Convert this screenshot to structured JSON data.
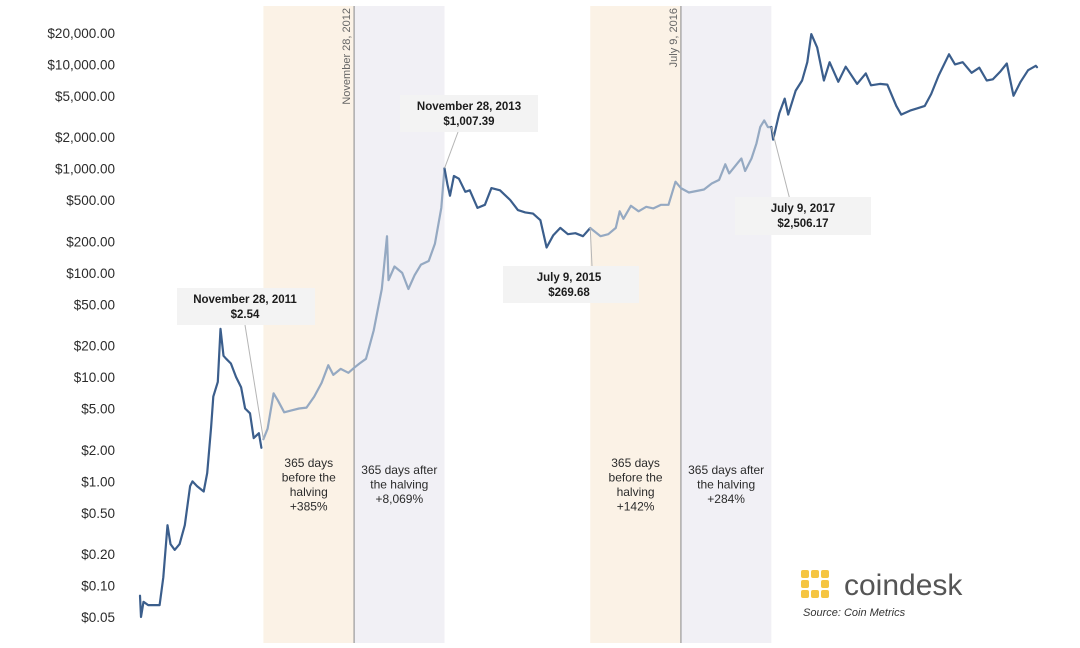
{
  "chart_data": {
    "type": "line",
    "title": "",
    "xlabel": "",
    "ylabel": "",
    "y_scale": "log",
    "ylim": [
      0.04,
      28000
    ],
    "y_ticks": [
      {
        "value": 20000,
        "label": "$20,000.00"
      },
      {
        "value": 10000,
        "label": "$10,000.00"
      },
      {
        "value": 5000,
        "label": "$5,000.00"
      },
      {
        "value": 2000,
        "label": "$2,000.00"
      },
      {
        "value": 1000,
        "label": "$1,000.00"
      },
      {
        "value": 500,
        "label": "$500.00"
      },
      {
        "value": 200,
        "label": "$200.00"
      },
      {
        "value": 100,
        "label": "$100.00"
      },
      {
        "value": 50,
        "label": "$50.00"
      },
      {
        "value": 20,
        "label": "$20.00"
      },
      {
        "value": 10,
        "label": "$10.00"
      },
      {
        "value": 5,
        "label": "$5.00"
      },
      {
        "value": 2,
        "label": "$2.00"
      },
      {
        "value": 1,
        "label": "$1.00"
      },
      {
        "value": 0.5,
        "label": "$0.50"
      },
      {
        "value": 0.2,
        "label": "$0.20"
      },
      {
        "value": 0.1,
        "label": "$0.10"
      },
      {
        "value": 0.05,
        "label": "$0.05"
      }
    ],
    "x_domain": [
      "2010-07-18",
      "2020-06-15"
    ],
    "grid": false,
    "colors": {
      "price_line": "#3b5e8c",
      "highlight_line": "#95a9c2",
      "before_band": "#fbf2e6",
      "after_band": "#f1f0f5",
      "vline": "#9a9a9a",
      "annotation_bg": "#f3f3f3",
      "halving_marker": "#8f8f8f"
    },
    "series": [
      {
        "points": [
          [
            "2010-07-18",
            0.08
          ],
          [
            "2010-07-22",
            0.05
          ],
          [
            "2010-08-01",
            0.07
          ],
          [
            "2010-08-20",
            0.065
          ],
          [
            "2010-09-15",
            0.065
          ],
          [
            "2010-10-05",
            0.065
          ],
          [
            "2010-10-20",
            0.12
          ],
          [
            "2010-11-06",
            0.38
          ],
          [
            "2010-11-18",
            0.25
          ],
          [
            "2010-12-05",
            0.22
          ],
          [
            "2010-12-25",
            0.25
          ],
          [
            "2011-01-15",
            0.38
          ],
          [
            "2011-02-05",
            0.9
          ],
          [
            "2011-02-15",
            1.0
          ],
          [
            "2011-03-05",
            0.9
          ],
          [
            "2011-04-01",
            0.8
          ],
          [
            "2011-04-15",
            1.2
          ],
          [
            "2011-05-01",
            3.3
          ],
          [
            "2011-05-10",
            6.5
          ],
          [
            "2011-05-28",
            9.0
          ],
          [
            "2011-06-08",
            29.0
          ],
          [
            "2011-06-20",
            16.0
          ],
          [
            "2011-07-01",
            15.0
          ],
          [
            "2011-07-20",
            13.5
          ],
          [
            "2011-08-10",
            10.0
          ],
          [
            "2011-08-30",
            8.0
          ],
          [
            "2011-09-15",
            5.0
          ],
          [
            "2011-10-05",
            4.5
          ],
          [
            "2011-10-20",
            2.6
          ],
          [
            "2011-11-10",
            2.9
          ],
          [
            "2011-11-20",
            2.1
          ]
        ]
      },
      {
        "points": [
          [
            "2011-11-28",
            2.54
          ],
          [
            "2011-12-15",
            3.2
          ],
          [
            "2012-01-08",
            7.0
          ],
          [
            "2012-01-25",
            6.0
          ],
          [
            "2012-02-20",
            4.6
          ],
          [
            "2012-03-20",
            4.8
          ],
          [
            "2012-04-20",
            5.0
          ],
          [
            "2012-05-20",
            5.1
          ],
          [
            "2012-06-20",
            6.5
          ],
          [
            "2012-07-20",
            8.8
          ],
          [
            "2012-08-16",
            13.0
          ],
          [
            "2012-09-05",
            10.5
          ],
          [
            "2012-10-05",
            12.0
          ],
          [
            "2012-11-05",
            11.0
          ],
          [
            "2012-11-28",
            12.3
          ],
          [
            "2012-12-20",
            13.5
          ],
          [
            "2013-01-15",
            15.0
          ],
          [
            "2013-02-15",
            28.0
          ],
          [
            "2013-03-20",
            70.0
          ],
          [
            "2013-04-10",
            225.0
          ],
          [
            "2013-04-16",
            85.0
          ],
          [
            "2013-05-10",
            115.0
          ],
          [
            "2013-06-10",
            100.0
          ],
          [
            "2013-07-05",
            70.0
          ],
          [
            "2013-07-30",
            95.0
          ],
          [
            "2013-08-25",
            120.0
          ],
          [
            "2013-09-25",
            130.0
          ],
          [
            "2013-10-20",
            190.0
          ],
          [
            "2013-11-15",
            420.0
          ],
          [
            "2013-11-28",
            1007.39
          ]
        ]
      },
      {
        "points": [
          [
            "2013-11-28",
            1007.39
          ],
          [
            "2013-12-10",
            700.0
          ],
          [
            "2013-12-20",
            550.0
          ],
          [
            "2014-01-05",
            850.0
          ],
          [
            "2014-01-25",
            800.0
          ],
          [
            "2014-02-20",
            600.0
          ],
          [
            "2014-03-10",
            620.0
          ],
          [
            "2014-04-10",
            420.0
          ],
          [
            "2014-05-10",
            450.0
          ],
          [
            "2014-06-05",
            650.0
          ],
          [
            "2014-07-10",
            620.0
          ],
          [
            "2014-08-20",
            500.0
          ],
          [
            "2014-09-20",
            400.0
          ],
          [
            "2014-10-20",
            380.0
          ],
          [
            "2014-11-20",
            370.0
          ],
          [
            "2014-12-20",
            320.0
          ],
          [
            "2015-01-14",
            175.0
          ],
          [
            "2015-02-10",
            230.0
          ],
          [
            "2015-03-10",
            270.0
          ],
          [
            "2015-04-10",
            235.0
          ],
          [
            "2015-05-10",
            240.0
          ],
          [
            "2015-06-10",
            225.0
          ],
          [
            "2015-07-09",
            269.68
          ]
        ]
      },
      {
        "points": [
          [
            "2015-07-09",
            269.68
          ],
          [
            "2015-08-20",
            225.0
          ],
          [
            "2015-09-20",
            235.0
          ],
          [
            "2015-10-20",
            270.0
          ],
          [
            "2015-11-05",
            390.0
          ],
          [
            "2015-11-20",
            330.0
          ],
          [
            "2015-12-20",
            440.0
          ],
          [
            "2016-01-20",
            390.0
          ],
          [
            "2016-02-20",
            430.0
          ],
          [
            "2016-03-20",
            415.0
          ],
          [
            "2016-04-20",
            450.0
          ],
          [
            "2016-05-20",
            450.0
          ],
          [
            "2016-06-17",
            750.0
          ],
          [
            "2016-07-09",
            650.0
          ],
          [
            "2016-08-10",
            590.0
          ],
          [
            "2016-09-10",
            610.0
          ],
          [
            "2016-10-10",
            630.0
          ],
          [
            "2016-11-10",
            720.0
          ],
          [
            "2016-12-10",
            780.0
          ],
          [
            "2017-01-04",
            1100.0
          ],
          [
            "2017-01-20",
            900.0
          ],
          [
            "2017-02-25",
            1150.0
          ],
          [
            "2017-03-10",
            1250.0
          ],
          [
            "2017-03-25",
            950.0
          ],
          [
            "2017-04-20",
            1250.0
          ],
          [
            "2017-05-10",
            1750.0
          ],
          [
            "2017-05-25",
            2500.0
          ],
          [
            "2017-06-10",
            2900.0
          ],
          [
            "2017-06-25",
            2500.0
          ],
          [
            "2017-07-09",
            2506.17
          ]
        ]
      },
      {
        "points": [
          [
            "2017-07-09",
            2506.17
          ],
          [
            "2017-07-16",
            1900.0
          ],
          [
            "2017-08-10",
            3400.0
          ],
          [
            "2017-09-01",
            4700.0
          ],
          [
            "2017-09-15",
            3300.0
          ],
          [
            "2017-10-15",
            5600.0
          ],
          [
            "2017-11-10",
            7000.0
          ],
          [
            "2017-12-01",
            10500.0
          ],
          [
            "2017-12-17",
            19500.0
          ],
          [
            "2018-01-10",
            14500.0
          ],
          [
            "2018-02-06",
            7000.0
          ],
          [
            "2018-03-01",
            10500.0
          ],
          [
            "2018-04-05",
            6800.0
          ],
          [
            "2018-05-05",
            9500.0
          ],
          [
            "2018-06-20",
            6500.0
          ],
          [
            "2018-07-25",
            8200.0
          ],
          [
            "2018-08-15",
            6300.0
          ],
          [
            "2018-09-20",
            6500.0
          ],
          [
            "2018-10-20",
            6400.0
          ],
          [
            "2018-11-25",
            4000.0
          ],
          [
            "2018-12-15",
            3300.0
          ],
          [
            "2019-01-20",
            3600.0
          ],
          [
            "2019-02-20",
            3800.0
          ],
          [
            "2019-03-20",
            4000.0
          ],
          [
            "2019-04-15",
            5200.0
          ],
          [
            "2019-05-15",
            7800.0
          ],
          [
            "2019-06-26",
            12500.0
          ],
          [
            "2019-07-20",
            10000.0
          ],
          [
            "2019-08-20",
            10500.0
          ],
          [
            "2019-09-25",
            8300.0
          ],
          [
            "2019-10-26",
            9300.0
          ],
          [
            "2019-11-25",
            7000.0
          ],
          [
            "2019-12-20",
            7200.0
          ],
          [
            "2020-01-20",
            8600.0
          ],
          [
            "2020-02-14",
            10200.0
          ],
          [
            "2020-03-12",
            5000.0
          ],
          [
            "2020-04-10",
            6800.0
          ],
          [
            "2020-05-10",
            8800.0
          ],
          [
            "2020-06-10",
            9700.0
          ],
          [
            "2020-06-15",
            9400.0
          ]
        ]
      }
    ],
    "bands": [
      {
        "start": "2011-11-28",
        "end": "2012-11-28",
        "kind": "before",
        "lines": [
          "365 days",
          "before the",
          "halving",
          "+385%"
        ]
      },
      {
        "start": "2012-11-28",
        "end": "2013-11-28",
        "kind": "after",
        "lines": [
          "365 days after",
          "the halving",
          "+8,069%"
        ]
      },
      {
        "start": "2015-07-09",
        "end": "2016-07-09",
        "kind": "before",
        "lines": [
          "365 days",
          "before the",
          "halving",
          "+142%"
        ]
      },
      {
        "start": "2016-07-09",
        "end": "2017-07-09",
        "kind": "after",
        "lines": [
          "365 days after",
          "the halving",
          "+284%"
        ]
      }
    ],
    "halvings": [
      {
        "date": "2012-11-28",
        "label": "November 28, 2012"
      },
      {
        "date": "2016-07-09",
        "label": "July 9, 2016"
      }
    ],
    "annotations": [
      {
        "date": "2011-11-28",
        "value": 2.54,
        "title": "November 28, 2011",
        "value_label": "$2.54"
      },
      {
        "date": "2013-11-28",
        "value": 1007.39,
        "title": "November 28, 2013",
        "value_label": "$1,007.39"
      },
      {
        "date": "2015-07-09",
        "value": 269.68,
        "title": "July 9, 2015",
        "value_label": "$269.68"
      },
      {
        "date": "2017-07-09",
        "value": 2506.17,
        "title": "July 9, 2017",
        "value_label": "$2,506.17"
      }
    ]
  },
  "branding": {
    "brand": "coindesk",
    "source": "Source: Coin Metrics",
    "logo_color": "#f5c542"
  }
}
